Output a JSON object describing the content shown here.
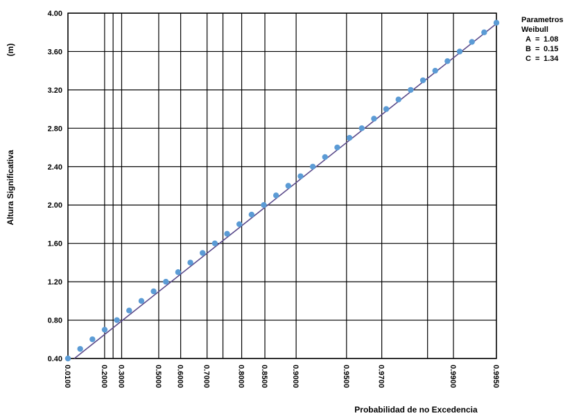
{
  "chart_data": {
    "type": "scatter",
    "title": "",
    "xlabel": "Probabilidad de no Excedencia",
    "ylabel": "Altura Significativa",
    "ylabel_unit": "(m)",
    "xscale": "weibull-probability",
    "ylim": [
      0.4,
      4.0
    ],
    "y_ticks": [
      "0.40",
      "0.80",
      "1.20",
      "1.60",
      "2.00",
      "2.40",
      "2.80",
      "3.20",
      "3.60",
      "4.00"
    ],
    "x_ticks": [
      {
        "label": "0.0100",
        "p": 0.01
      },
      {
        "label": "0.2000",
        "p": 0.2
      },
      {
        "label": "0.3000",
        "p": 0.3
      },
      {
        "label": "0.5000",
        "p": 0.5
      },
      {
        "label": "0.6000",
        "p": 0.6
      },
      {
        "label": "0.7000",
        "p": 0.7
      },
      {
        "label": "0.8000",
        "p": 0.8
      },
      {
        "label": "0.8500",
        "p": 0.85
      },
      {
        "label": "0.9000",
        "p": 0.9
      },
      {
        "label": "0.9500",
        "p": 0.95
      },
      {
        "label": "0.9700",
        "p": 0.97
      },
      {
        "label": "0.9900",
        "p": 0.99
      },
      {
        "label": "0.9950",
        "p": 0.995
      }
    ],
    "x_extra_gridlines": [
      0.25,
      0.75,
      0.985
    ],
    "points_y": [
      0.4,
      0.5,
      0.6,
      0.7,
      0.8,
      0.9,
      1.0,
      1.1,
      1.2,
      1.3,
      1.4,
      1.5,
      1.6,
      1.7,
      1.8,
      1.9,
      2.0,
      2.1,
      2.2,
      2.3,
      2.4,
      2.5,
      2.6,
      2.7,
      2.8,
      2.9,
      3.0,
      3.1,
      3.2,
      3.3,
      3.4,
      3.5,
      3.6,
      3.7,
      3.8,
      3.9
    ],
    "fit_line": {
      "from": [
        0.0355,
        0.4
      ],
      "to": [
        0.995,
        3.89
      ]
    },
    "grid": true,
    "colors": {
      "points": "#5b9bd5",
      "fit_line": "#5a4a8a",
      "grid": "#000000"
    }
  },
  "parameters": {
    "title_line1": "Parametros",
    "title_line2": "Weibull",
    "rows": [
      {
        "key": "A",
        "eq": "=",
        "value": "1.08"
      },
      {
        "key": "B",
        "eq": "=",
        "value": "0.15"
      },
      {
        "key": "C",
        "eq": "=",
        "value": "1.34"
      }
    ]
  }
}
